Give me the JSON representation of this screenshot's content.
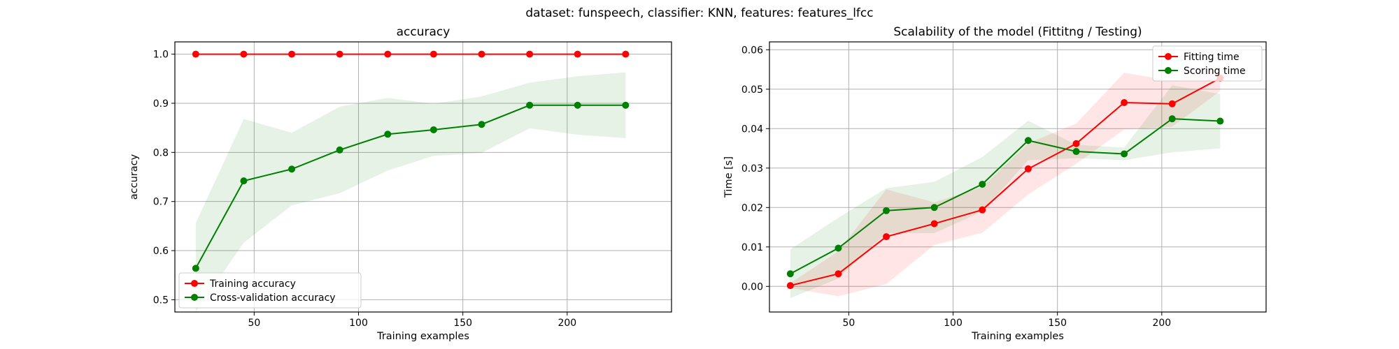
{
  "suptitle": "dataset: funspeech, classifier: KNN, features: features_lfcc",
  "chart_data": [
    {
      "type": "line",
      "title": "accuracy",
      "xlabel": "Training examples",
      "ylabel": "accuracy",
      "xlim": [
        12,
        250
      ],
      "ylim": [
        0.475,
        1.025
      ],
      "xticks": [
        50,
        100,
        150,
        200
      ],
      "yticks": [
        0.5,
        0.6,
        0.7,
        0.8,
        0.9,
        1.0
      ],
      "ytick_labels": [
        "0.5",
        "0.6",
        "0.7",
        "0.8",
        "0.9",
        "1.0"
      ],
      "grid": true,
      "legend": "lower-left",
      "x": [
        22,
        45,
        68,
        91,
        114,
        136,
        159,
        182,
        205,
        228
      ],
      "series": [
        {
          "name": "Training accuracy",
          "color": "#ff0000",
          "values": [
            1.0,
            1.0,
            1.0,
            1.0,
            1.0,
            1.0,
            1.0,
            1.0,
            1.0,
            1.0
          ],
          "band_lower": [
            1.0,
            1.0,
            1.0,
            1.0,
            1.0,
            1.0,
            1.0,
            1.0,
            1.0,
            1.0
          ],
          "band_upper": [
            1.0,
            1.0,
            1.0,
            1.0,
            1.0,
            1.0,
            1.0,
            1.0,
            1.0,
            1.0
          ]
        },
        {
          "name": "Cross-validation accuracy",
          "color": "#008000",
          "values": [
            0.564,
            0.742,
            0.766,
            0.805,
            0.837,
            0.846,
            0.857,
            0.896,
            0.896,
            0.896
          ],
          "band_lower": [
            0.475,
            0.616,
            0.692,
            0.717,
            0.763,
            0.793,
            0.799,
            0.849,
            0.836,
            0.829
          ],
          "band_upper": [
            0.656,
            0.868,
            0.84,
            0.893,
            0.911,
            0.899,
            0.914,
            0.942,
            0.955,
            0.963
          ]
        }
      ]
    },
    {
      "type": "line",
      "title": "Scalability of the model (Fittitng / Testing)",
      "xlabel": "Training examples",
      "ylabel": "Time [s]",
      "xlim": [
        12,
        250
      ],
      "ylim": [
        -0.0065,
        0.062
      ],
      "xticks": [
        50,
        100,
        150,
        200
      ],
      "yticks": [
        0.0,
        0.01,
        0.02,
        0.03,
        0.04,
        0.05,
        0.06
      ],
      "ytick_labels": [
        "0.00",
        "0.01",
        "0.02",
        "0.03",
        "0.04",
        "0.05",
        "0.06"
      ],
      "grid": true,
      "legend": "top-right",
      "x": [
        22,
        45,
        68,
        91,
        114,
        136,
        159,
        182,
        205,
        228
      ],
      "series": [
        {
          "name": "Fitting time",
          "color": "#ff0000",
          "values": [
            0.0002,
            0.0032,
            0.0126,
            0.0159,
            0.0194,
            0.0298,
            0.0362,
            0.0466,
            0.0463,
            0.0528
          ],
          "band_lower": [
            -0.0004,
            -0.0025,
            0.0006,
            0.0105,
            0.0136,
            0.0233,
            0.0311,
            0.0398,
            0.0405,
            0.0495
          ],
          "band_upper": [
            0.0008,
            0.0089,
            0.0246,
            0.0213,
            0.0252,
            0.0363,
            0.0413,
            0.0542,
            0.0521,
            0.0561
          ]
        },
        {
          "name": "Scoring time",
          "color": "#008000",
          "values": [
            0.0032,
            0.0097,
            0.0192,
            0.02,
            0.0259,
            0.037,
            0.0342,
            0.0336,
            0.0425,
            0.0419
          ],
          "band_lower": [
            -0.003,
            0.002,
            0.0135,
            0.0135,
            0.019,
            0.032,
            0.0325,
            0.032,
            0.034,
            0.035
          ],
          "band_upper": [
            0.0094,
            0.0174,
            0.0249,
            0.0265,
            0.0328,
            0.042,
            0.0359,
            0.0352,
            0.051,
            0.0488
          ]
        }
      ]
    }
  ]
}
